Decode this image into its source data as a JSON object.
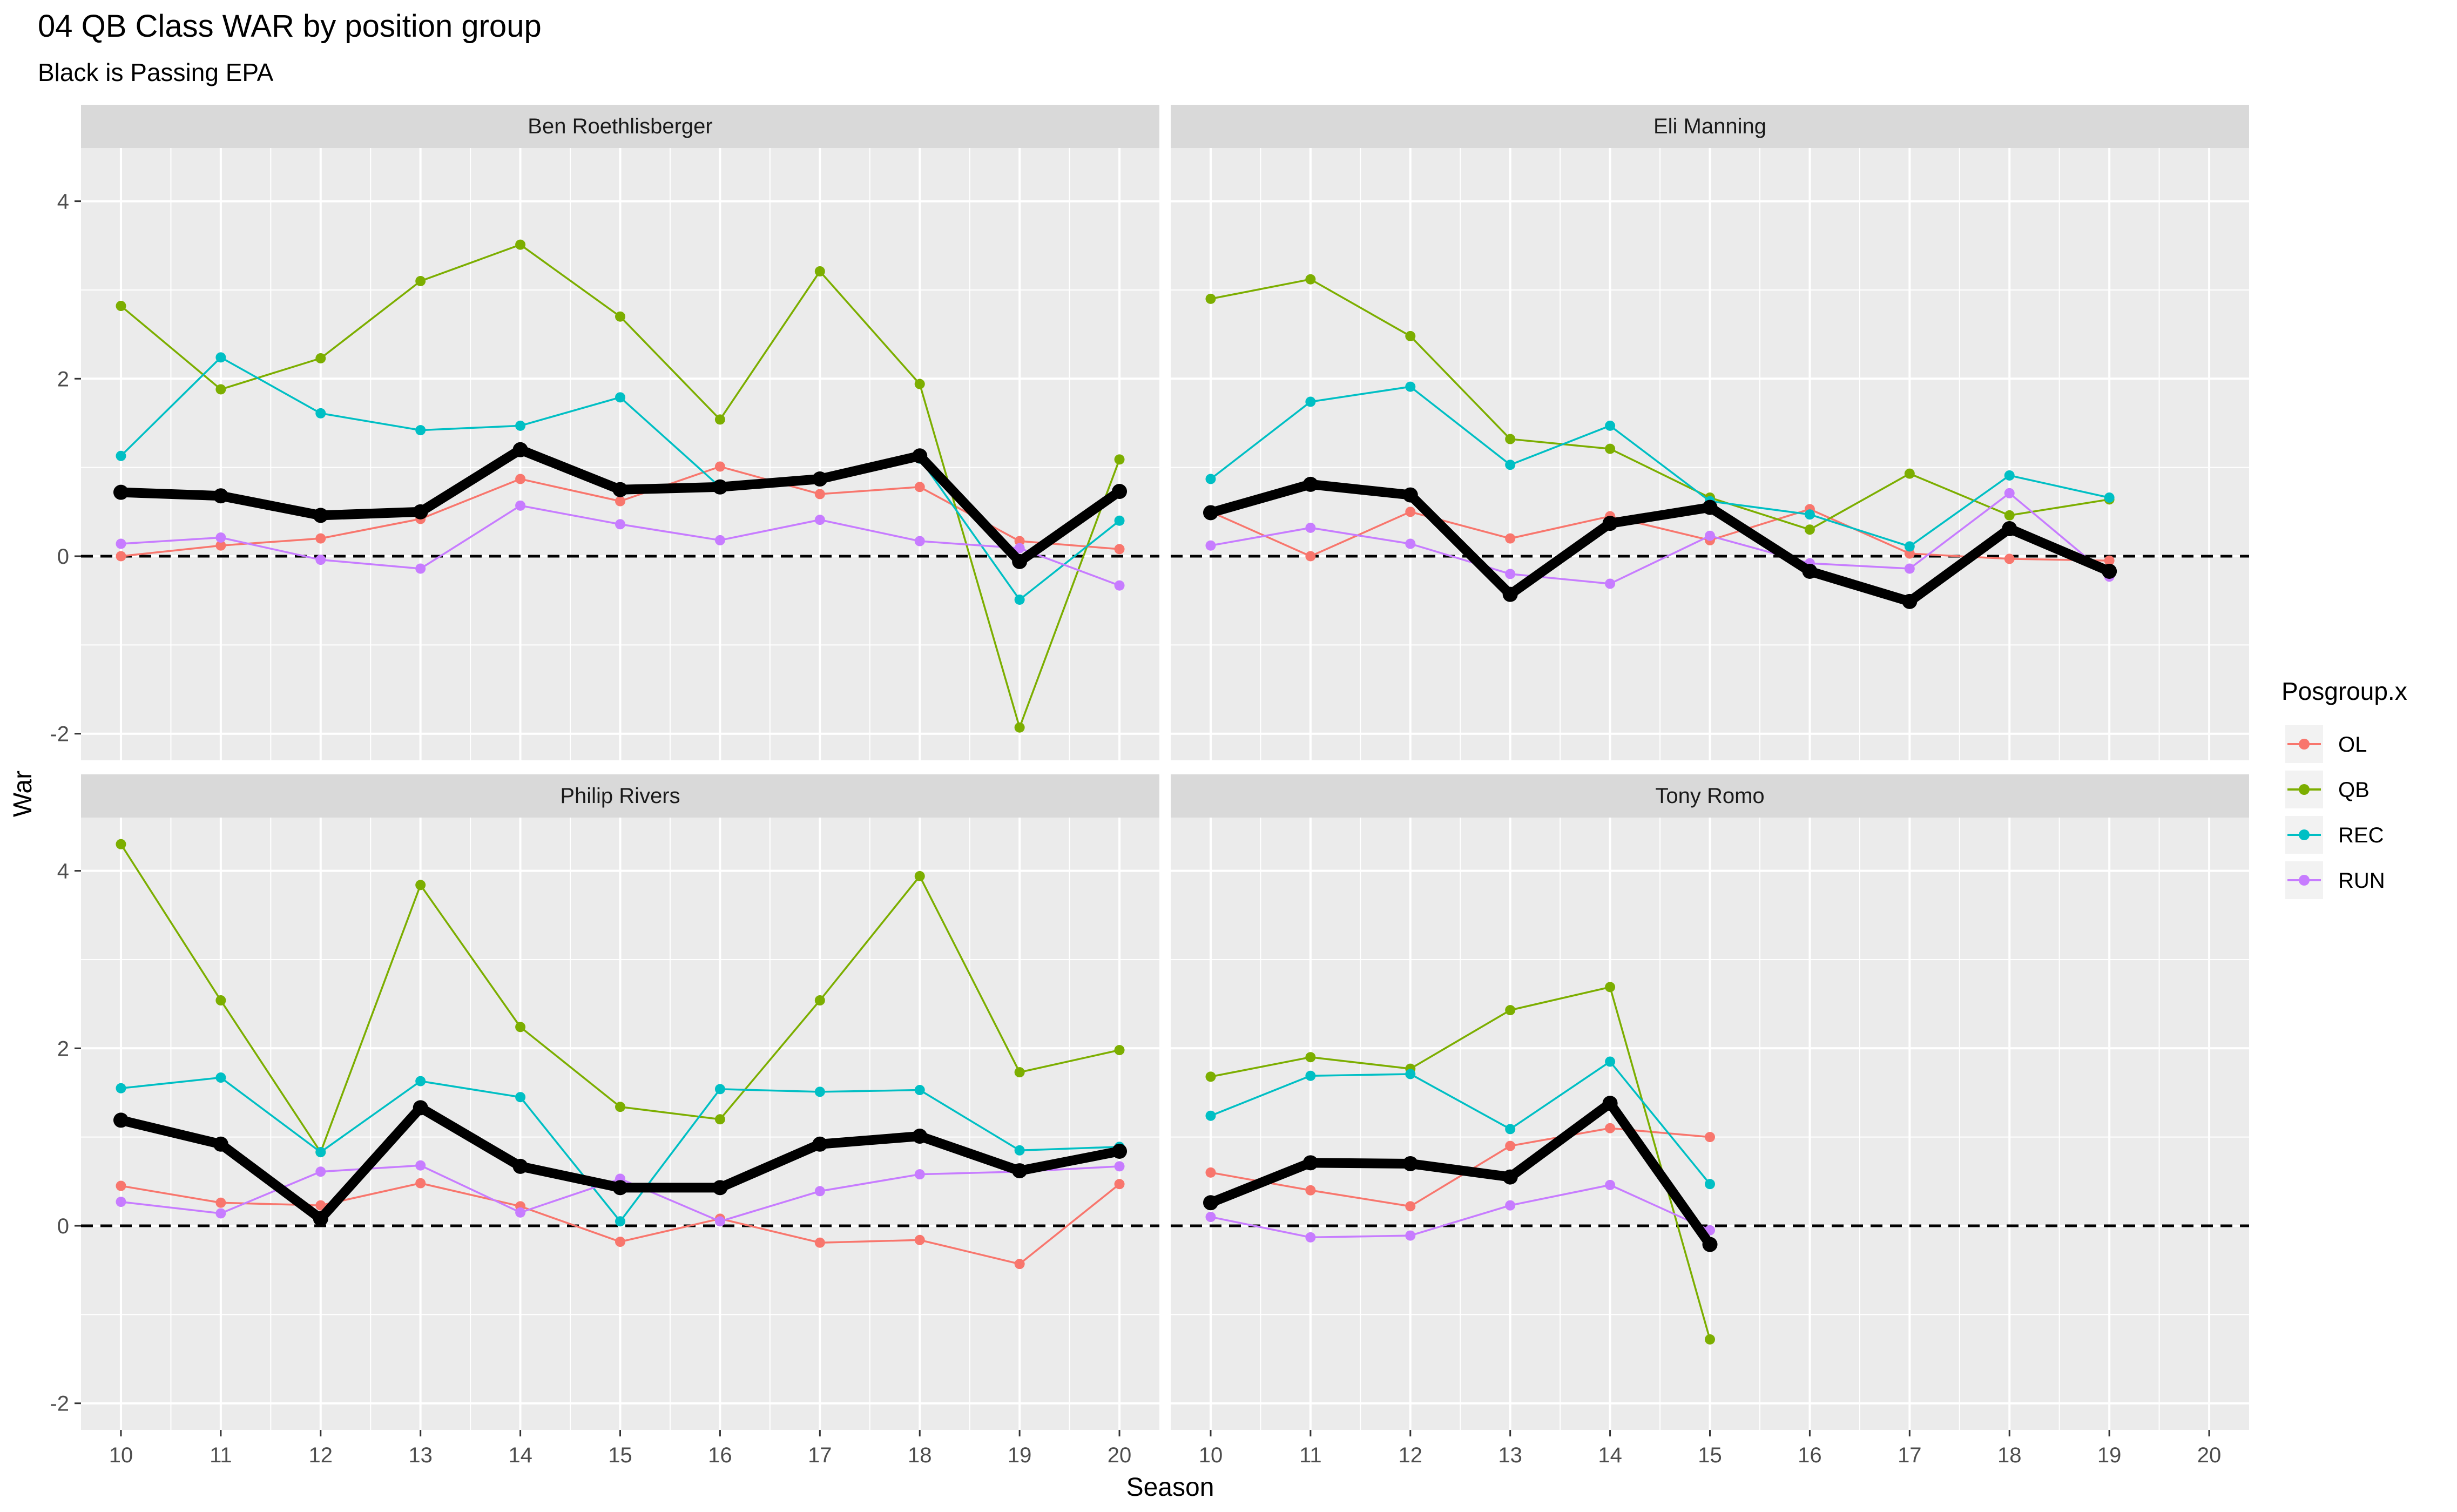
{
  "title": "04 QB Class WAR by position group",
  "subtitle": "Black is Passing EPA",
  "xlabel": "Season",
  "ylabel": "War",
  "legend": {
    "title": "Posgroup.x",
    "items": [
      "OL",
      "QB",
      "REC",
      "RUN"
    ]
  },
  "colors": {
    "OL": "#F8766D",
    "QB": "#7CAE00",
    "REC": "#00BFC4",
    "RUN": "#C77CFF",
    "EPA": "#000000",
    "panel_bg": "#EBEBEB",
    "strip_bg": "#D9D9D9",
    "grid": "#FFFFFF"
  },
  "chart_data": {
    "type": "line",
    "xlim": [
      9.6,
      20.4
    ],
    "ylim": [
      -2.3,
      4.6
    ],
    "x_ticks": [
      10,
      11,
      12,
      13,
      14,
      15,
      16,
      17,
      18,
      19,
      20
    ],
    "y_ticks": [
      -2,
      0,
      2,
      4
    ],
    "reference_line": 0,
    "legend_position": "right",
    "panels": [
      {
        "name": "Ben Roethlisberger",
        "x": [
          10,
          11,
          12,
          13,
          14,
          15,
          16,
          17,
          18,
          19,
          20
        ],
        "series": [
          {
            "name": "OL",
            "values": [
              0.0,
              0.12,
              0.2,
              0.42,
              0.87,
              0.62,
              1.01,
              0.7,
              0.78,
              0.17,
              0.08
            ]
          },
          {
            "name": "QB",
            "values": [
              2.82,
              1.88,
              2.23,
              3.1,
              3.51,
              2.7,
              1.54,
              3.21,
              1.94,
              -1.93,
              1.09
            ]
          },
          {
            "name": "REC",
            "values": [
              1.13,
              2.24,
              1.61,
              1.42,
              1.47,
              1.79,
              0.78,
              0.88,
              1.1,
              -0.49,
              0.4
            ]
          },
          {
            "name": "RUN",
            "values": [
              0.14,
              0.21,
              -0.04,
              -0.14,
              0.57,
              0.36,
              0.18,
              0.41,
              0.17,
              0.09,
              -0.33
            ]
          }
        ],
        "epa": [
          0.72,
          0.68,
          0.46,
          0.5,
          1.2,
          0.75,
          0.78,
          0.87,
          1.13,
          -0.06,
          0.73
        ]
      },
      {
        "name": "Eli Manning",
        "x": [
          10,
          11,
          12,
          13,
          14,
          15,
          16,
          17,
          18,
          19
        ],
        "series": [
          {
            "name": "OL",
            "values": [
              0.5,
              0.0,
              0.5,
              0.2,
              0.45,
              0.18,
              0.53,
              0.03,
              -0.03,
              -0.05
            ]
          },
          {
            "name": "QB",
            "values": [
              2.9,
              3.12,
              2.48,
              1.32,
              1.21,
              0.66,
              0.3,
              0.93,
              0.46,
              0.64
            ]
          },
          {
            "name": "REC",
            "values": [
              0.87,
              1.74,
              1.91,
              1.03,
              1.47,
              0.62,
              0.47,
              0.11,
              0.91,
              0.66
            ]
          },
          {
            "name": "RUN",
            "values": [
              0.12,
              0.32,
              0.14,
              -0.2,
              -0.31,
              0.23,
              -0.08,
              -0.14,
              0.71,
              -0.23
            ]
          }
        ],
        "epa": [
          0.49,
          0.81,
          0.69,
          -0.43,
          0.37,
          0.55,
          -0.17,
          -0.51,
          0.31,
          -0.17
        ]
      },
      {
        "name": "Philip Rivers",
        "x": [
          10,
          11,
          12,
          13,
          14,
          15,
          16,
          17,
          18,
          19,
          20
        ],
        "series": [
          {
            "name": "OL",
            "values": [
              0.45,
              0.26,
              0.23,
              0.48,
              0.22,
              -0.18,
              0.08,
              -0.19,
              -0.16,
              -0.43,
              0.47
            ]
          },
          {
            "name": "QB",
            "values": [
              4.3,
              2.54,
              0.83,
              3.84,
              2.24,
              1.34,
              1.2,
              2.54,
              3.94,
              1.73,
              1.98
            ]
          },
          {
            "name": "REC",
            "values": [
              1.55,
              1.67,
              0.83,
              1.63,
              1.45,
              0.05,
              1.54,
              1.51,
              1.53,
              0.85,
              0.89
            ]
          },
          {
            "name": "RUN",
            "values": [
              0.27,
              0.14,
              0.61,
              0.68,
              0.15,
              0.53,
              0.05,
              0.39,
              0.58,
              0.61,
              0.67
            ]
          }
        ],
        "epa": [
          1.19,
          0.92,
          0.08,
          1.33,
          0.67,
          0.43,
          0.43,
          0.92,
          1.01,
          0.62,
          0.84
        ]
      },
      {
        "name": "Tony Romo",
        "x": [
          10,
          11,
          12,
          13,
          14,
          15
        ],
        "series": [
          {
            "name": "OL",
            "values": [
              0.6,
              0.4,
              0.22,
              0.9,
              1.1,
              1.0
            ]
          },
          {
            "name": "QB",
            "values": [
              1.68,
              1.9,
              1.77,
              2.43,
              2.69,
              -1.28
            ]
          },
          {
            "name": "REC",
            "values": [
              1.24,
              1.69,
              1.71,
              1.09,
              1.85,
              0.47
            ]
          },
          {
            "name": "RUN",
            "values": [
              0.1,
              -0.13,
              -0.11,
              0.23,
              0.46,
              -0.05
            ]
          }
        ],
        "epa": [
          0.26,
          0.71,
          0.7,
          0.55,
          1.38,
          -0.21
        ]
      }
    ]
  }
}
